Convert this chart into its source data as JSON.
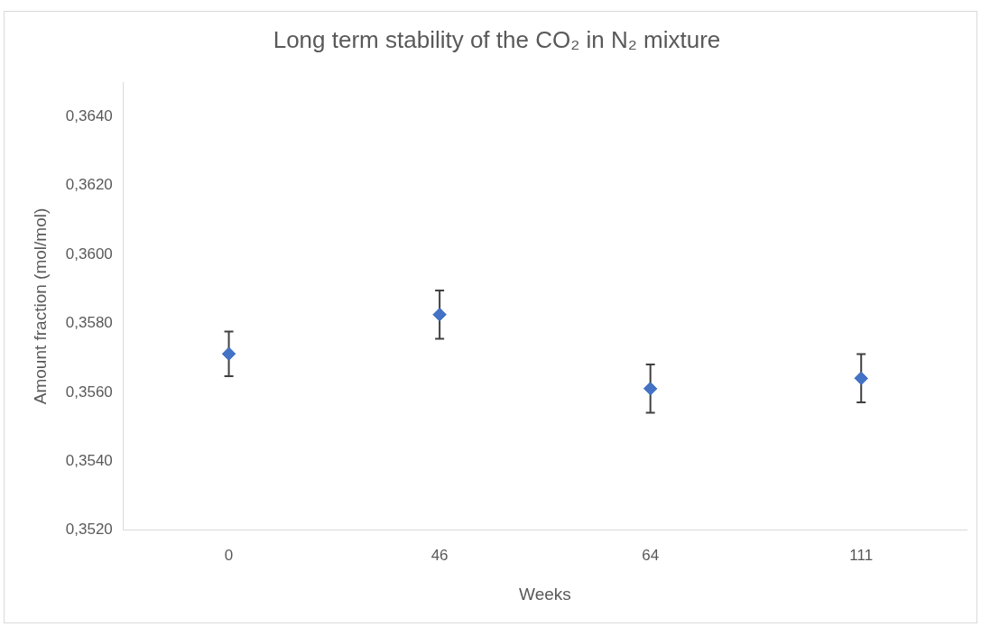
{
  "chart_data": {
    "type": "scatter",
    "title": "Long term stability of the CO₂ in N₂ mixture",
    "xlabel": "Weeks",
    "ylabel": "Amount fraction (mol/mol)",
    "categories": [
      "0",
      "46",
      "64",
      "111"
    ],
    "series": [
      {
        "color": "#4472c4",
        "values": [
          0.35712,
          0.35826,
          0.35611,
          0.35641
        ],
        "errors": [
          0.00065,
          0.0007,
          0.0007,
          0.0007
        ]
      }
    ],
    "ylim": [
      0.352,
      0.365
    ],
    "yticks": [
      {
        "value": 0.352,
        "label": "0,3520"
      },
      {
        "value": 0.354,
        "label": "0,3540"
      },
      {
        "value": 0.356,
        "label": "0,3560"
      },
      {
        "value": 0.358,
        "label": "0,3580"
      },
      {
        "value": 0.36,
        "label": "0,3600"
      },
      {
        "value": 0.362,
        "label": "0,3620"
      },
      {
        "value": 0.364,
        "label": "0,3640"
      }
    ],
    "marker": "diamond",
    "grid": false,
    "legend": false
  }
}
